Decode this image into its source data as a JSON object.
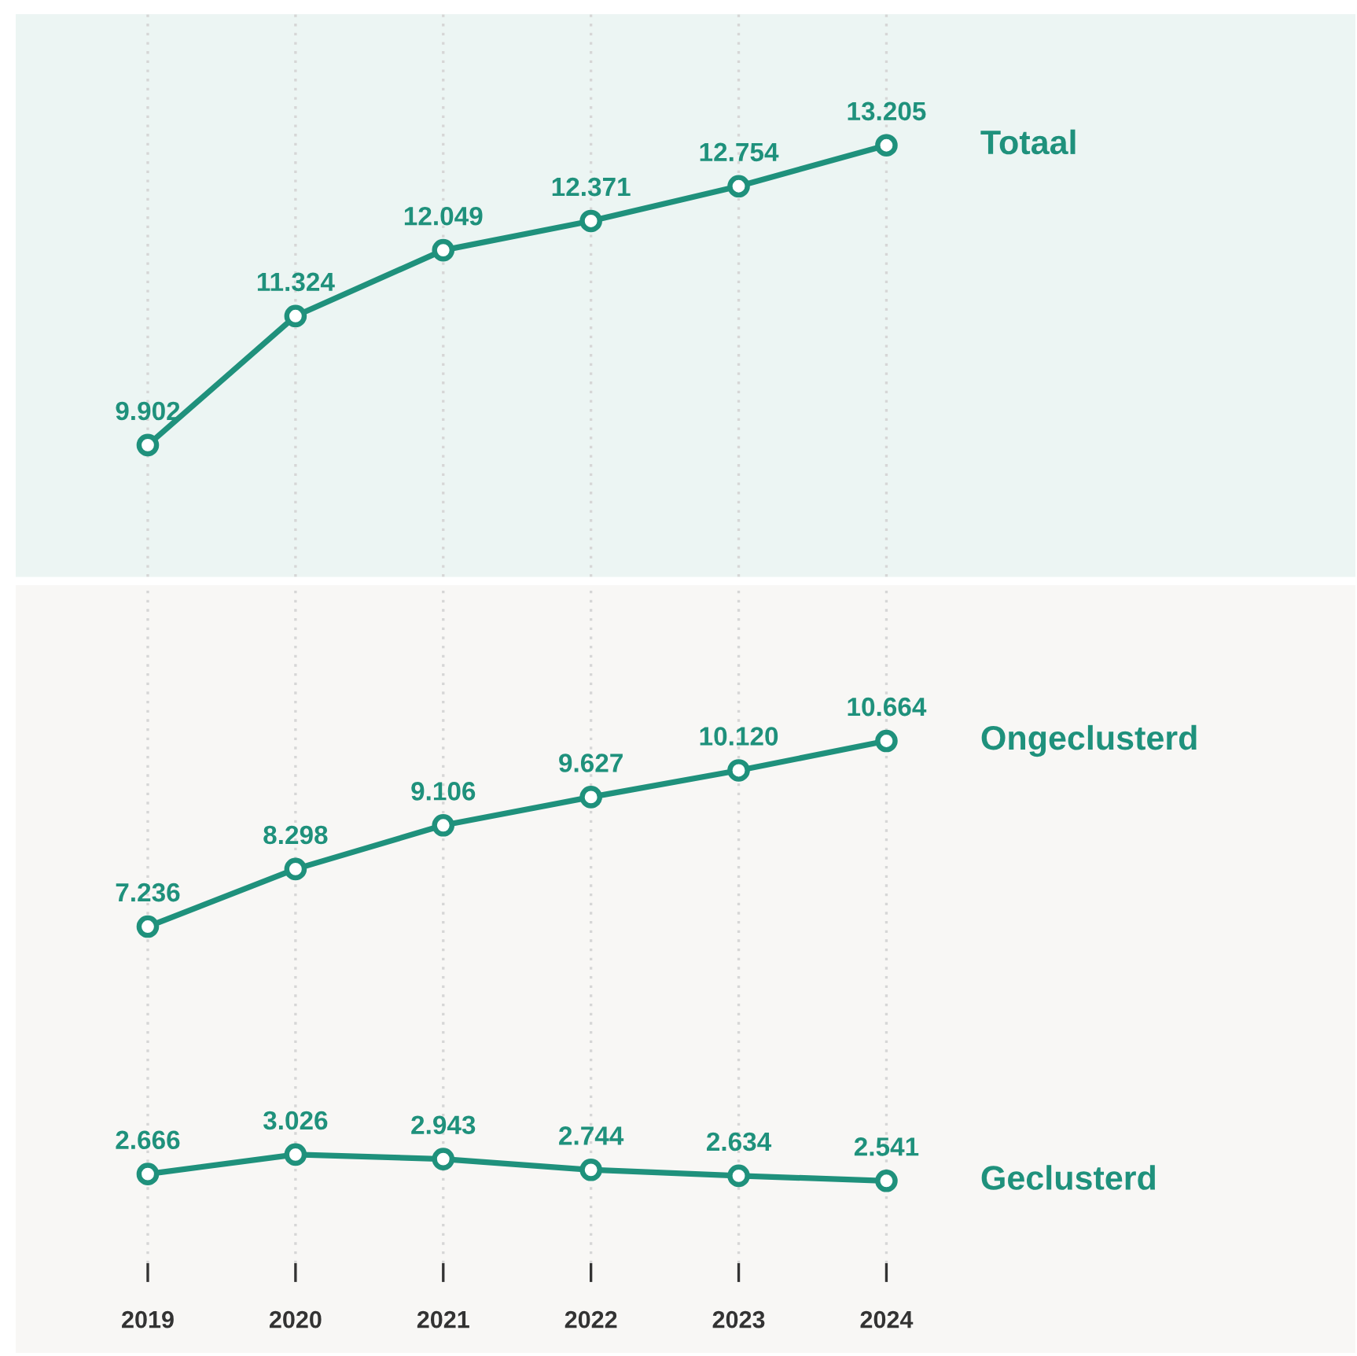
{
  "chart_data": [
    {
      "type": "line",
      "categories": [
        "2019",
        "2020",
        "2021",
        "2022",
        "2023",
        "2024"
      ],
      "ylim": [
        8450,
        14650
      ],
      "tick_labels": false,
      "grid": "x",
      "marker": "circle",
      "line_style": "solid",
      "series": [
        {
          "name": "Totaal",
          "color": "#1f917c",
          "values": [
            9902,
            11324,
            12049,
            12371,
            12754,
            13205
          ],
          "value_labels": [
            "9.902",
            "11.324",
            "12.049",
            "12.371",
            "12.754",
            "13.205"
          ]
        }
      ]
    },
    {
      "type": "line",
      "categories": [
        "2019",
        "2020",
        "2021",
        "2022",
        "2023",
        "2024"
      ],
      "ylim": [
        1020,
        13540
      ],
      "tick_labels": "x",
      "grid": "x",
      "marker": "circle",
      "line_style": "solid",
      "series": [
        {
          "name": "Ongeclusterd",
          "color": "#1f917c",
          "values": [
            7236,
            8298,
            9106,
            9627,
            10120,
            10664
          ],
          "value_labels": [
            "7.236",
            "8.298",
            "9.106",
            "9.627",
            "10.120",
            "10.664"
          ]
        },
        {
          "name": "Geclusterd",
          "color": "#1f917c",
          "values": [
            2666,
            3026,
            2943,
            2744,
            2634,
            2541
          ],
          "value_labels": [
            "2.666",
            "3.026",
            "2.943",
            "2.744",
            "2.634",
            "2.541"
          ]
        }
      ]
    }
  ]
}
